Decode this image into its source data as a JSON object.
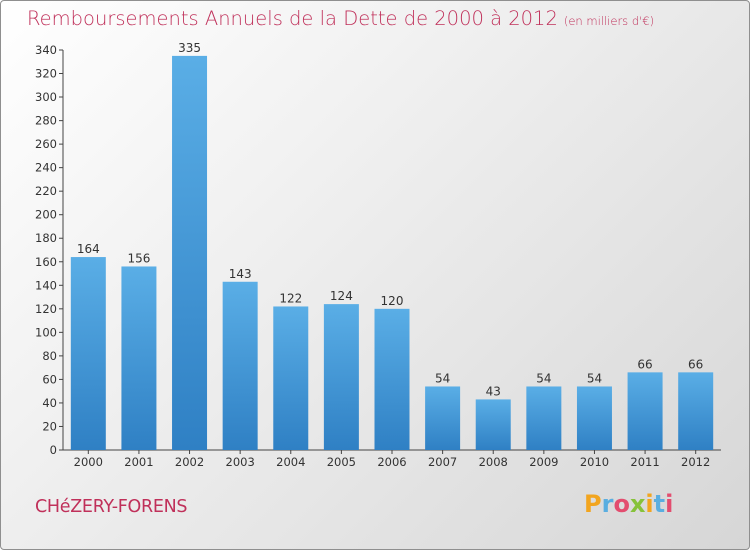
{
  "header": {
    "title": "Remboursements Annuels de la Dette de 2000 à 2012",
    "unit": "(en milliers d'€)"
  },
  "footer": {
    "commune": "CHéZERY-FORENS"
  },
  "logo": {
    "text": "Proxiti",
    "letter_colors": [
      "#f2a51f",
      "#5aaee0",
      "#e34d6f",
      "#86c23a",
      "#f2a51f",
      "#5aaee0",
      "#e34d6f"
    ]
  },
  "colors": {
    "bar_top": "#5aaee6",
    "bar_bottom": "#2f80c4",
    "title": "#c0305a",
    "axis": "#444444"
  },
  "chart_data": {
    "type": "bar",
    "title": "Remboursements Annuels de la Dette de 2000 à 2012",
    "subtitle": "(en milliers d'€)",
    "xlabel": "",
    "ylabel": "",
    "categories": [
      "2000",
      "2001",
      "2002",
      "2003",
      "2004",
      "2005",
      "2006",
      "2007",
      "2008",
      "2009",
      "2010",
      "2011",
      "2012"
    ],
    "values": [
      164,
      156,
      335,
      143,
      122,
      124,
      120,
      54,
      43,
      54,
      54,
      66,
      66
    ],
    "ylim": [
      0,
      340
    ],
    "yticks": [
      0,
      20,
      40,
      60,
      80,
      100,
      120,
      140,
      160,
      180,
      200,
      220,
      240,
      260,
      280,
      300,
      320,
      340
    ],
    "grid": false,
    "legend": "none"
  }
}
